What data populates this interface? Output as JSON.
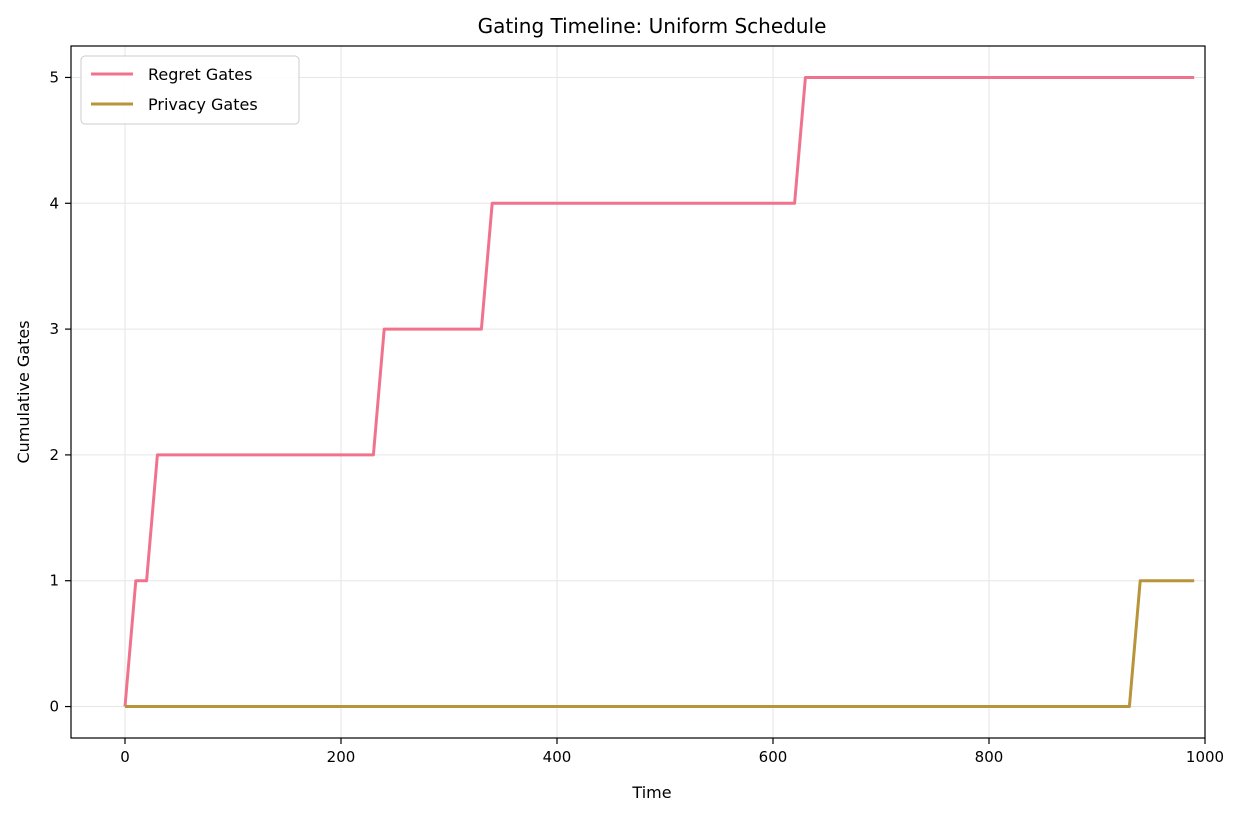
{
  "chart_data": {
    "type": "line",
    "title": "Gating Timeline: Uniform Schedule",
    "xlabel": "Time",
    "ylabel": "Cumulative Gates",
    "xlim": [
      -50,
      1000
    ],
    "ylim": [
      -0.25,
      5.25
    ],
    "xticks": [
      0,
      200,
      400,
      600,
      800,
      1000
    ],
    "yticks": [
      0,
      1,
      2,
      3,
      4,
      5
    ],
    "grid": true,
    "legend_position": "top-left",
    "series": [
      {
        "name": "Regret Gates",
        "color": "#f0738e",
        "x": [
          0,
          10,
          20,
          30,
          230,
          240,
          330,
          340,
          620,
          630,
          990
        ],
        "y": [
          0,
          1,
          1,
          2,
          2,
          3,
          3,
          4,
          4,
          5,
          5
        ]
      },
      {
        "name": "Privacy Gates",
        "color": "#b8943a",
        "x": [
          0,
          930,
          940,
          990
        ],
        "y": [
          0,
          0,
          1,
          1
        ]
      }
    ]
  }
}
